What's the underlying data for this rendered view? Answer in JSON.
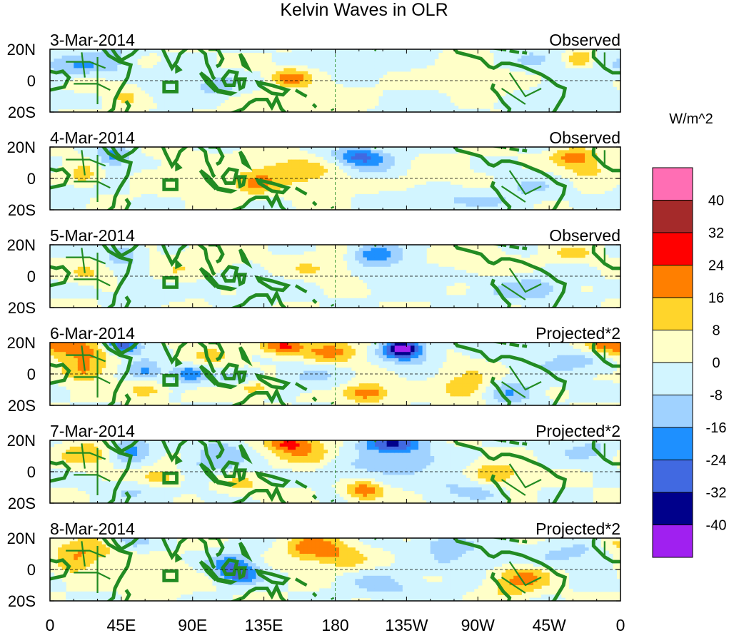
{
  "chart_data": {
    "type": "heatmap",
    "title": "Kelvin Waves in OLR",
    "colorbar_label": "W/m^2",
    "colorbar_ticks": [
      "40",
      "32",
      "24",
      "16",
      "8",
      "0",
      "-8",
      "-16",
      "-24",
      "-32",
      "-40"
    ],
    "colorbar_colors": [
      "#ff6eb4",
      "#a52a2a",
      "#ff0000",
      "#ff7f00",
      "#ffd52b",
      "#ffffc8",
      "#d2f5ff",
      "#a0d2ff",
      "#1e90ff",
      "#4169e1",
      "#00008b",
      "#a020f0"
    ],
    "x_ticks": [
      "0",
      "45E",
      "90E",
      "135E",
      "180",
      "135W",
      "90W",
      "45W",
      "0"
    ],
    "x_range_deg": [
      0,
      360
    ],
    "y_ticks": [
      "20N",
      "0",
      "20S"
    ],
    "y_range_deg": [
      -20,
      20
    ],
    "land_color": "#228b22",
    "panels": [
      {
        "date": "3-Mar-2014",
        "type_label": "Observed",
        "scale": 1,
        "blobs": [
          [
            20,
            8,
            12,
            6,
            -14
          ],
          [
            40,
            15,
            10,
            8,
            -10
          ],
          [
            105,
            -3,
            12,
            5,
            -12
          ],
          [
            25,
            0,
            8,
            4,
            10
          ],
          [
            48,
            -8,
            8,
            6,
            8
          ],
          [
            152,
            2,
            8,
            4,
            20
          ],
          [
            75,
            -4,
            10,
            6,
            -8
          ],
          [
            200,
            14,
            18,
            5,
            -6
          ],
          [
            305,
            14,
            10,
            5,
            -8
          ],
          [
            320,
            -12,
            15,
            6,
            -8
          ],
          [
            235,
            -12,
            20,
            6,
            -6
          ],
          [
            345,
            10,
            20,
            6,
            -6
          ],
          [
            335,
            14,
            6,
            4,
            18
          ],
          [
            260,
            -2,
            25,
            8,
            5
          ],
          [
            170,
            -10,
            30,
            6,
            4
          ]
        ]
      },
      {
        "date": "4-Mar-2014",
        "type_label": "Observed",
        "scale": 1,
        "blobs": [
          [
            40,
            14,
            8,
            6,
            -18
          ],
          [
            20,
            2,
            8,
            6,
            12
          ],
          [
            130,
            -3,
            10,
            5,
            16
          ],
          [
            150,
            6,
            14,
            5,
            14
          ],
          [
            195,
            14,
            12,
            4,
            -24
          ],
          [
            205,
            6,
            14,
            6,
            -10
          ],
          [
            330,
            14,
            10,
            4,
            18
          ],
          [
            340,
            6,
            10,
            5,
            12
          ],
          [
            250,
            -14,
            30,
            5,
            -10
          ],
          [
            300,
            -5,
            15,
            6,
            -8
          ],
          [
            10,
            -10,
            10,
            6,
            -8
          ],
          [
            90,
            4,
            20,
            8,
            6
          ],
          [
            170,
            -2,
            15,
            8,
            6
          ],
          [
            230,
            0,
            30,
            8,
            4
          ]
        ]
      },
      {
        "date": "5-Mar-2014",
        "type_label": "Observed",
        "scale": 1,
        "blobs": [
          [
            45,
            14,
            8,
            5,
            -16
          ],
          [
            205,
            14,
            10,
            5,
            -22
          ],
          [
            225,
            2,
            20,
            8,
            -8
          ],
          [
            310,
            -8,
            15,
            6,
            -10
          ],
          [
            170,
            4,
            20,
            7,
            8
          ],
          [
            100,
            12,
            12,
            6,
            8
          ],
          [
            60,
            -8,
            12,
            6,
            -8
          ],
          [
            25,
            2,
            10,
            5,
            8
          ],
          [
            262,
            10,
            20,
            6,
            8
          ],
          [
            330,
            14,
            10,
            4,
            10
          ],
          [
            140,
            -6,
            20,
            6,
            -6
          ],
          [
            75,
            2,
            10,
            6,
            6
          ],
          [
            285,
            -10,
            15,
            6,
            -6
          ]
        ]
      },
      {
        "date": "6-Mar-2014",
        "type_label": "Projected*2",
        "scale": 2,
        "blobs": [
          [
            45,
            18,
            8,
            4,
            -34
          ],
          [
            15,
            16,
            18,
            6,
            20
          ],
          [
            22,
            2,
            10,
            5,
            18
          ],
          [
            147,
            18,
            10,
            4,
            26
          ],
          [
            178,
            14,
            12,
            5,
            18
          ],
          [
            222,
            16,
            8,
            4,
            -44
          ],
          [
            232,
            8,
            14,
            6,
            -14
          ],
          [
            200,
            -12,
            10,
            4,
            24
          ],
          [
            60,
            2,
            8,
            5,
            -20
          ],
          [
            60,
            -10,
            8,
            4,
            16
          ],
          [
            88,
            0,
            8,
            4,
            -24
          ],
          [
            120,
            -3,
            10,
            4,
            -16
          ],
          [
            128,
            -8,
            10,
            4,
            16
          ],
          [
            265,
            -10,
            12,
            6,
            14
          ],
          [
            290,
            -12,
            12,
            5,
            -18
          ],
          [
            330,
            8,
            20,
            6,
            -12
          ],
          [
            348,
            18,
            10,
            4,
            16
          ],
          [
            100,
            10,
            14,
            6,
            8
          ],
          [
            165,
            -2,
            15,
            6,
            -8
          ],
          [
            245,
            4,
            20,
            6,
            8
          ]
        ]
      },
      {
        "date": "7-Mar-2014",
        "type_label": "Projected*2",
        "scale": 2,
        "blobs": [
          [
            150,
            18,
            10,
            4,
            26
          ],
          [
            165,
            10,
            12,
            6,
            14
          ],
          [
            215,
            18,
            14,
            4,
            -30
          ],
          [
            225,
            8,
            15,
            6,
            -12
          ],
          [
            50,
            14,
            10,
            6,
            -20
          ],
          [
            25,
            12,
            15,
            6,
            14
          ],
          [
            70,
            -4,
            10,
            5,
            14
          ],
          [
            105,
            6,
            15,
            6,
            -12
          ],
          [
            107,
            16,
            10,
            4,
            -8
          ],
          [
            120,
            -8,
            10,
            5,
            10
          ],
          [
            198,
            -12,
            8,
            4,
            24
          ],
          [
            255,
            -6,
            15,
            6,
            -10
          ],
          [
            280,
            -2,
            12,
            5,
            18
          ],
          [
            275,
            -14,
            10,
            4,
            -10
          ],
          [
            340,
            14,
            15,
            6,
            -10
          ],
          [
            60,
            -12,
            20,
            5,
            -8
          ],
          [
            190,
            2,
            20,
            6,
            -8
          ]
        ]
      },
      {
        "date": "8-Mar-2014",
        "type_label": "Projected*2",
        "scale": 2,
        "blobs": [
          [
            25,
            12,
            15,
            6,
            14
          ],
          [
            15,
            4,
            8,
            5,
            12
          ],
          [
            50,
            18,
            10,
            4,
            -12
          ],
          [
            115,
            2,
            10,
            6,
            -24
          ],
          [
            122,
            -4,
            8,
            4,
            -16
          ],
          [
            165,
            14,
            12,
            6,
            20
          ],
          [
            185,
            8,
            12,
            6,
            12
          ],
          [
            250,
            16,
            12,
            4,
            -14
          ],
          [
            262,
            6,
            20,
            5,
            -8
          ],
          [
            300,
            -4,
            12,
            5,
            16
          ],
          [
            290,
            -12,
            12,
            5,
            10
          ],
          [
            70,
            -4,
            15,
            6,
            8
          ],
          [
            330,
            10,
            20,
            6,
            -10
          ],
          [
            205,
            -8,
            15,
            6,
            -8
          ],
          [
            355,
            16,
            8,
            4,
            10
          ],
          [
            230,
            -14,
            20,
            5,
            -6
          ]
        ]
      }
    ]
  }
}
